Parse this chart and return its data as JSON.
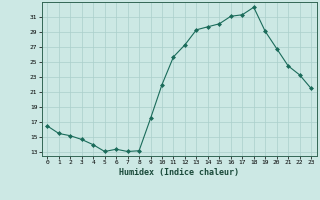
{
  "x": [
    0,
    1,
    2,
    3,
    4,
    5,
    6,
    7,
    8,
    9,
    10,
    11,
    12,
    13,
    14,
    15,
    16,
    17,
    18,
    19,
    20,
    21,
    22,
    23
  ],
  "y": [
    16.5,
    15.5,
    15.2,
    14.7,
    14.0,
    13.1,
    13.4,
    13.1,
    13.2,
    17.5,
    22.0,
    25.7,
    27.3,
    29.3,
    29.7,
    30.1,
    31.1,
    31.3,
    32.3,
    29.1,
    26.8,
    24.5,
    23.3,
    21.5
  ],
  "xlim": [
    -0.5,
    23.5
  ],
  "ylim": [
    12.5,
    33.0
  ],
  "yticks": [
    13,
    15,
    17,
    19,
    21,
    23,
    25,
    27,
    29,
    31
  ],
  "xticks": [
    0,
    1,
    2,
    3,
    4,
    5,
    6,
    7,
    8,
    9,
    10,
    11,
    12,
    13,
    14,
    15,
    16,
    17,
    18,
    19,
    20,
    21,
    22,
    23
  ],
  "xlabel": "Humidex (Indice chaleur)",
  "line_color": "#1a6b5a",
  "marker": "D",
  "marker_size": 2.0,
  "bg_color": "#cce8e4",
  "grid_color": "#aacfcb",
  "spine_color": "#336655"
}
